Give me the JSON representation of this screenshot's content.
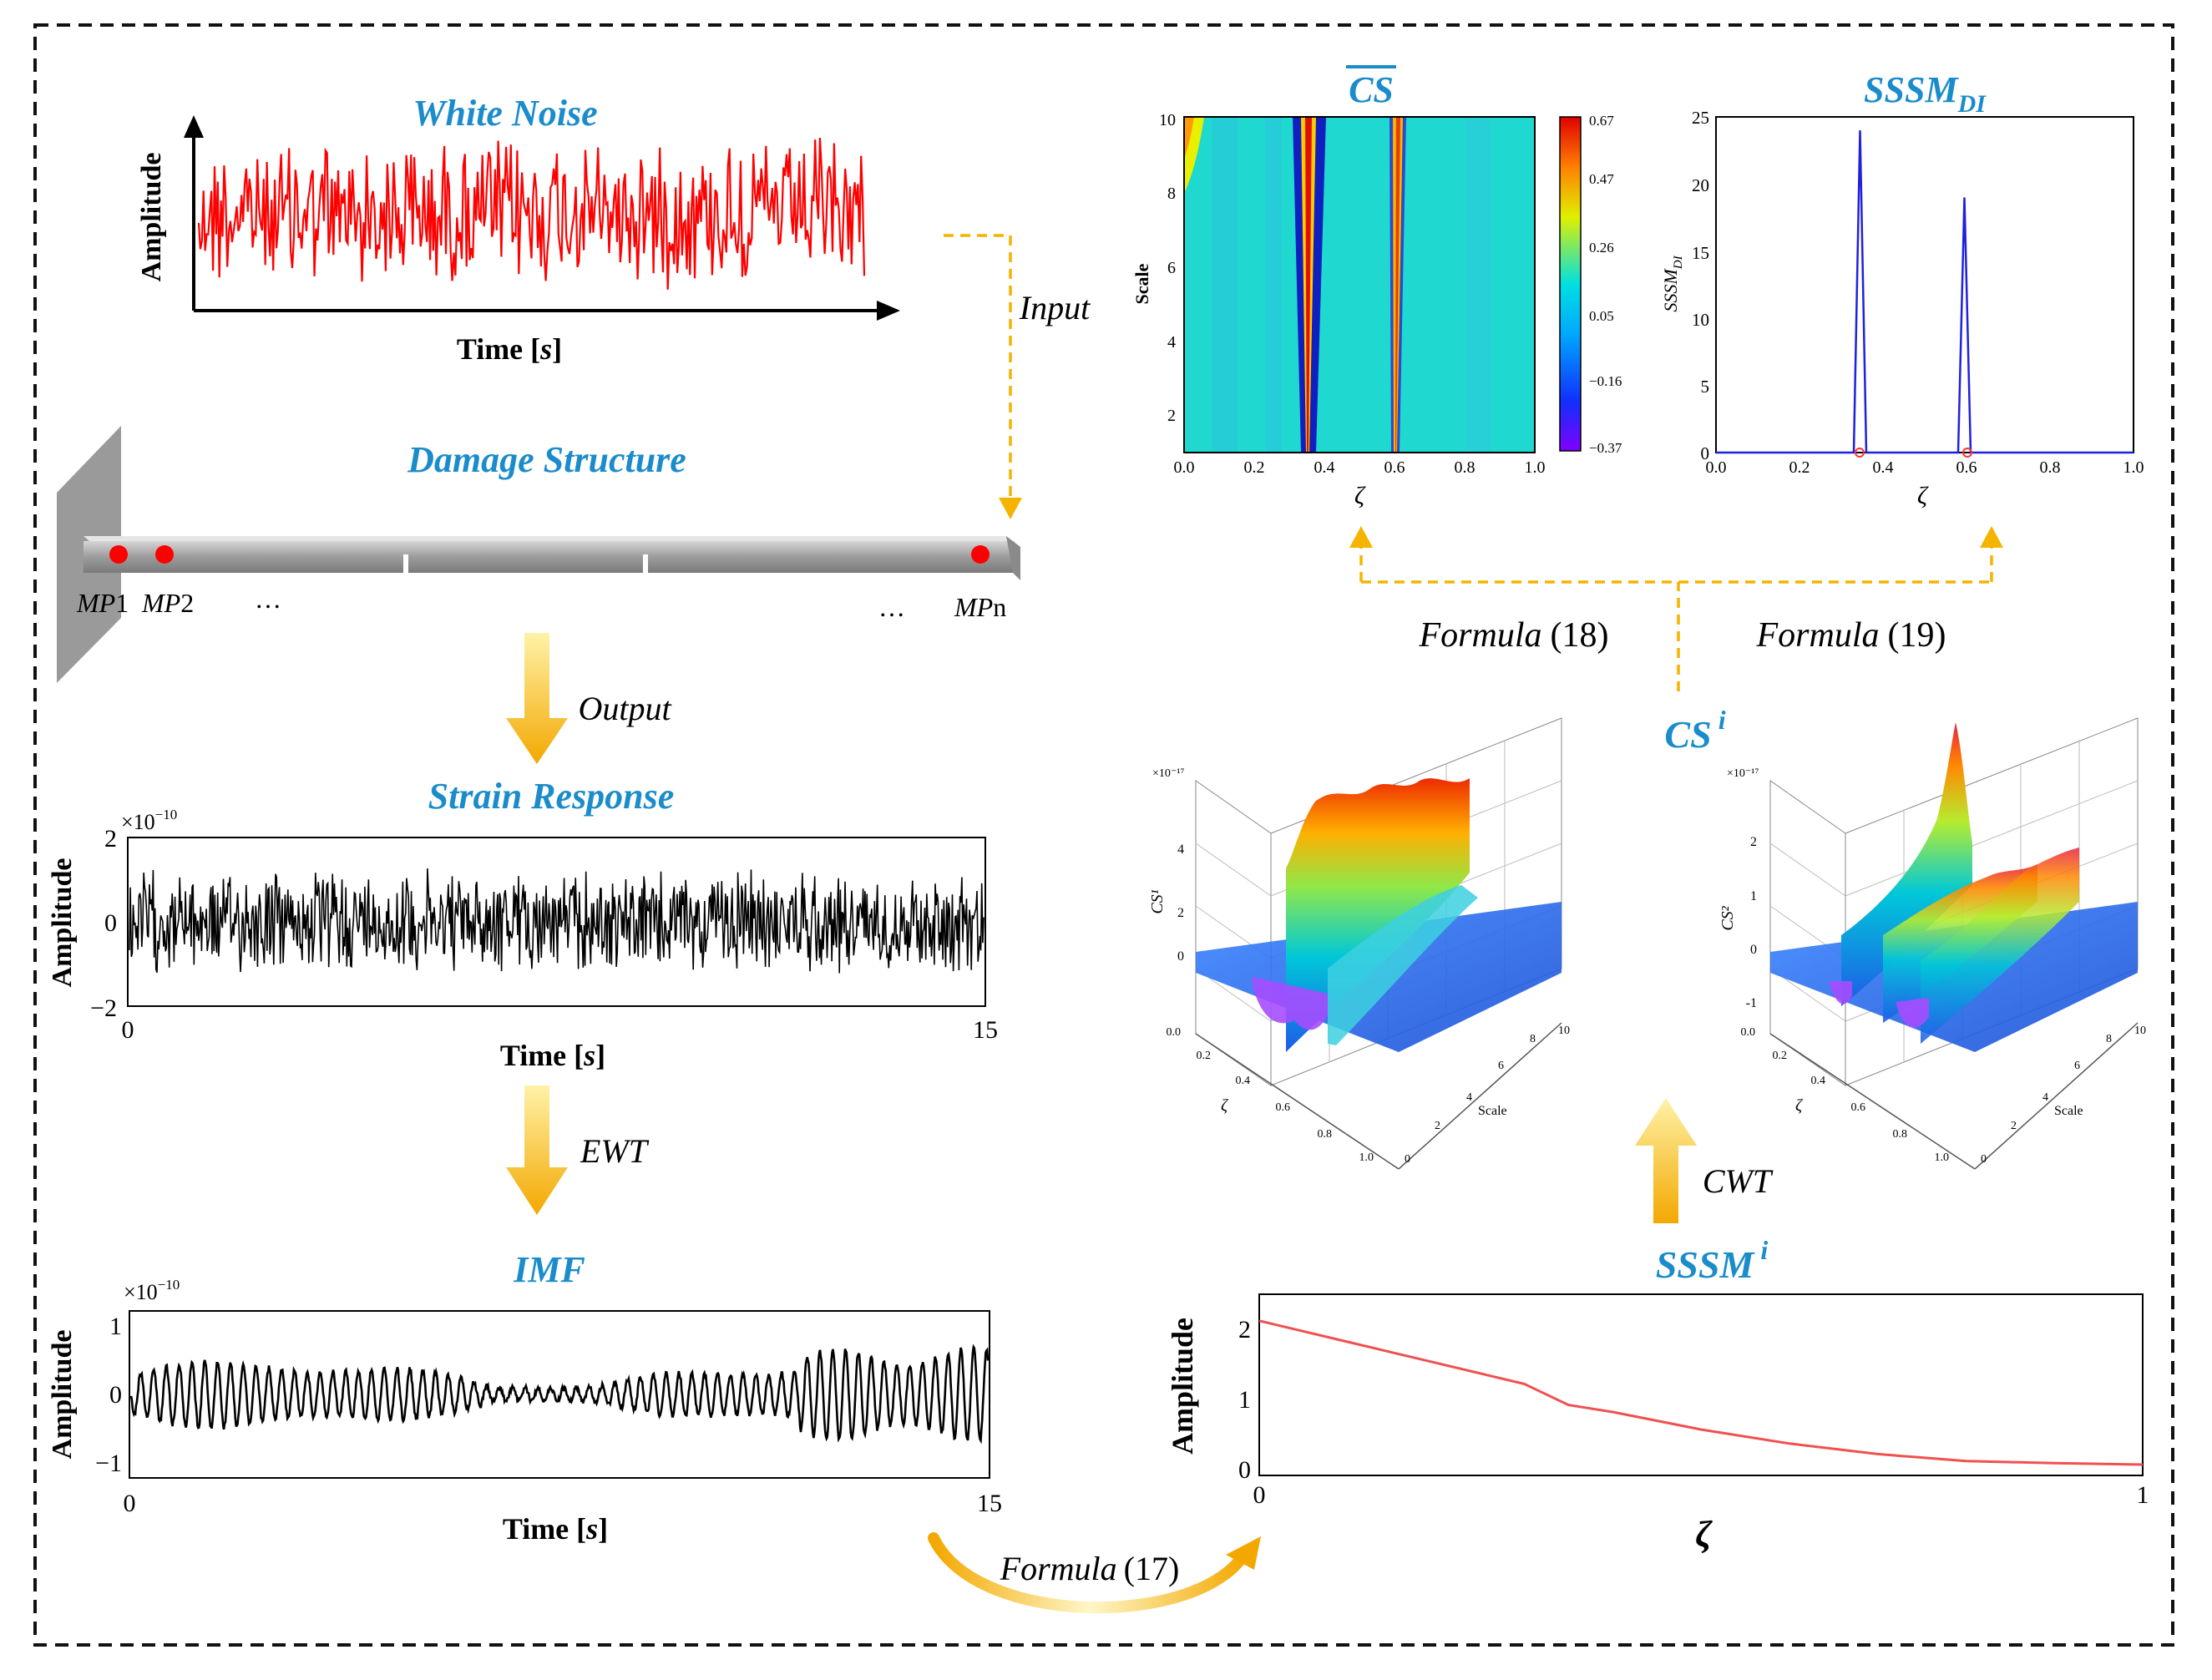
{
  "white_noise": {
    "title": "White Noise",
    "ylabel": "Amplitude",
    "xlabel_main": "Time [",
    "xlabel_var": "s",
    "xlabel_end": "]"
  },
  "arrows": {
    "input": "Input",
    "output": "Output",
    "ewt": "EWT",
    "cwt": "CWT"
  },
  "structure": {
    "title": "Damage Structure",
    "mp1_base": "MP",
    "mp1_num": "1",
    "mp2_base": "MP",
    "mp2_num": "2",
    "mpn_base": "MP",
    "mpn_sub": "n",
    "ellipsis": "…"
  },
  "strain": {
    "title": "Strain Response",
    "ylabel": "Amplitude",
    "exponent_base": "×10",
    "exponent_pow": "−10",
    "yticks": [
      "2",
      "0",
      "−2"
    ],
    "xticks": [
      "0",
      "15"
    ],
    "xlabel_main": "Time [",
    "xlabel_var": "s",
    "xlabel_end": "]"
  },
  "imf": {
    "title": "IMF",
    "ylabel": "Amplitude",
    "exponent_base": "×10",
    "exponent_pow": "−10",
    "yticks": [
      "1",
      "0",
      "−1"
    ],
    "xticks": [
      "0",
      "15"
    ],
    "xlabel_main": "Time [",
    "xlabel_var": "s",
    "xlabel_end": "]"
  },
  "formulas": {
    "f17_word": "Formula",
    "f17_num": "(17)",
    "f18_word": "Formula",
    "f18_num": "(18)",
    "f19_word": "Formula",
    "f19_num": "(19)"
  },
  "cs_bar": {
    "title": "CS",
    "ylabel": "Scale",
    "xlabel": "ζ",
    "yticks": [
      "10",
      "8",
      "6",
      "4",
      "2"
    ],
    "xticks": [
      "0.0",
      "0.2",
      "0.4",
      "0.6",
      "0.8",
      "1.0"
    ],
    "colorbar_ticks": [
      "0.67",
      "0.47",
      "0.26",
      "0.05",
      "−0.16",
      "−0.37"
    ]
  },
  "sssm_di": {
    "title_base": "SSSM",
    "title_sub": "DI",
    "ylabel_base": "SSSM",
    "ylabel_sub": "DI",
    "xlabel": "ζ",
    "yticks": [
      "25",
      "20",
      "15",
      "10",
      "5",
      "0"
    ],
    "xticks": [
      "0.0",
      "0.2",
      "0.4",
      "0.6",
      "0.8",
      "1.0"
    ]
  },
  "cs_i": {
    "label_base": "CS",
    "label_sup": "i"
  },
  "cs1_3d": {
    "zlabel": "CS¹",
    "xaxis": "ζ",
    "yaxis": "Scale",
    "exponent": "×10⁻¹⁷",
    "zticks": [
      "4",
      "2",
      "0"
    ],
    "xticks": [
      "0.0",
      "0.2",
      "0.4",
      "0.6",
      "0.8",
      "1.0"
    ],
    "yticks": [
      "0",
      "2",
      "4",
      "6",
      "8",
      "10"
    ]
  },
  "cs2_3d": {
    "zlabel": "CS²",
    "xaxis": "ζ",
    "yaxis": "Scale",
    "exponent": "×10⁻¹⁷",
    "zticks": [
      "2",
      "1",
      "0",
      "-1"
    ],
    "xticks": [
      "0.0",
      "0.2",
      "0.4",
      "0.6",
      "0.8",
      "1.0"
    ],
    "yticks": [
      "0",
      "2",
      "4",
      "6",
      "8",
      "10"
    ]
  },
  "sssm_i": {
    "title_base": "SSSM",
    "title_sup": "i",
    "ylabel": "Amplitude",
    "xlabel": "ζ",
    "yticks": [
      "2",
      "1",
      "0"
    ],
    "xticks": [
      "0",
      "1"
    ]
  },
  "colors": {
    "title_blue": "#1b8ccb",
    "arrow_orange": "#f4b400",
    "noise_red": "#ff0000",
    "di_blue": "#2020dd",
    "sssm_red": "#f05050"
  },
  "chart_data": [
    {
      "type": "line",
      "title": "White Noise",
      "ylabel": "Amplitude",
      "xlabel": "Time [s]",
      "description_values": "random white noise signal"
    },
    {
      "type": "line",
      "title": "Strain Response",
      "ylabel": "Amplitude",
      "xlabel": "Time [s]",
      "xlim": [
        0,
        15
      ],
      "ylim": [
        -2,
        2
      ],
      "y_exponent": "×10⁻¹⁰"
    },
    {
      "type": "line",
      "title": "IMF",
      "ylabel": "Amplitude",
      "xlabel": "Time [s]",
      "xlim": [
        0,
        15
      ],
      "ylim": [
        -1,
        1
      ],
      "y_exponent": "×10⁻¹⁰"
    },
    {
      "type": "heatmap",
      "title": "CS",
      "xlabel": "ζ",
      "ylabel": "Scale",
      "xlim": [
        0,
        1
      ],
      "ylim": [
        1,
        10
      ],
      "colorbar": [
        -0.37,
        -0.16,
        0.05,
        0.26,
        0.47,
        0.67
      ],
      "damage_locations": [
        0.35,
        0.6
      ]
    },
    {
      "type": "line",
      "title": "SSSM_DI",
      "xlabel": "ζ",
      "ylabel": "SSSM_DI",
      "xlim": [
        0,
        1
      ],
      "ylim": [
        0,
        25
      ],
      "x": [
        0,
        0.33,
        0.345,
        0.36,
        0.58,
        0.595,
        0.61,
        1.0
      ],
      "y": [
        0,
        0,
        24,
        0,
        0,
        19,
        0,
        0
      ]
    },
    {
      "type": "line",
      "title": "SSSM^i",
      "xlabel": "ζ",
      "ylabel": "Amplitude",
      "xlim": [
        0,
        1
      ],
      "ylim": [
        0,
        2.4
      ],
      "x": [
        0,
        0.1,
        0.2,
        0.3,
        0.35,
        0.4,
        0.5,
        0.6,
        0.7,
        0.8,
        0.9,
        1.0
      ],
      "y": [
        2.05,
        1.75,
        1.45,
        1.15,
        0.85,
        0.75,
        0.5,
        0.3,
        0.15,
        0.05,
        0.02,
        0.0
      ]
    }
  ]
}
